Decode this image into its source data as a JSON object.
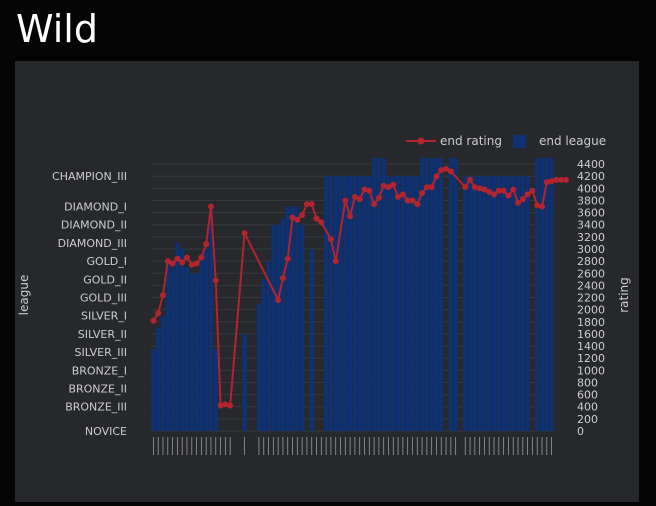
{
  "page": {
    "title": "Wild"
  },
  "colors": {
    "page_bg": "#050505",
    "panel_bg": "#26282c",
    "bar_color": "#0d3172",
    "line_color": "#b3242c",
    "text_color": "#cccccc",
    "grid_color": "#34373c"
  },
  "chart_data": {
    "type": "bar",
    "legend": {
      "position": "top-right",
      "items": [
        {
          "label": "end rating",
          "kind": "line",
          "color": "#b3242c"
        },
        {
          "label": "end league",
          "kind": "bar",
          "color": "#0d3172"
        }
      ]
    },
    "y_left": {
      "label": "league",
      "ticks": [
        "NOVICE",
        "BRONZE_III",
        "BRONZE_II",
        "BRONZE_I",
        "SILVER_III",
        "SILVER_II",
        "SILVER_I",
        "GOLD_III",
        "GOLD_II",
        "GOLD_I",
        "DIAMOND_III",
        "DIAMOND_II",
        "DIAMOND_I",
        "CHAMPION_III"
      ],
      "tick_values": [
        0,
        400,
        700,
        1000,
        1300,
        1600,
        1900,
        2200,
        2500,
        2800,
        3100,
        3400,
        3700,
        4200
      ],
      "range": [
        0,
        4500
      ]
    },
    "y_right": {
      "label": "rating",
      "ticks": [
        0,
        200,
        400,
        600,
        800,
        1000,
        1200,
        1400,
        1600,
        1800,
        2000,
        2200,
        2400,
        2600,
        2800,
        3000,
        3200,
        3400,
        3600,
        3800,
        4000,
        4200,
        4400
      ],
      "range": [
        0,
        4500
      ]
    },
    "grid": true,
    "series": [
      {
        "name": "end league",
        "type": "bar",
        "values": [
          1350,
          1700,
          1900,
          2800,
          2700,
          3100,
          3000,
          2700,
          2600,
          2600,
          2900,
          3000,
          3700,
          1350,
          0,
          0,
          0,
          0,
          0,
          1600,
          0,
          0,
          2100,
          2500,
          2800,
          3400,
          3400,
          3500,
          3700,
          3700,
          3700,
          3400,
          0,
          3000,
          0,
          0,
          4200,
          4200,
          4200,
          4200,
          4200,
          4200,
          4200,
          4200,
          4200,
          4200,
          4500,
          4500,
          4500,
          4200,
          4200,
          4200,
          4200,
          4200,
          4200,
          4200,
          4500,
          4500,
          4500,
          4500,
          4500,
          0,
          4500,
          4500,
          0,
          4200,
          4200,
          4200,
          4200,
          4200,
          4200,
          4200,
          4200,
          4200,
          4200,
          4200,
          4200,
          4200,
          4200,
          0,
          4500,
          4500,
          4500,
          4500
        ]
      },
      {
        "name": "end rating",
        "type": "line",
        "points": [
          [
            0,
            1820
          ],
          [
            1,
            1940
          ],
          [
            2,
            2240
          ],
          [
            3,
            2800
          ],
          [
            4,
            2760
          ],
          [
            5,
            2840
          ],
          [
            6,
            2780
          ],
          [
            7,
            2860
          ],
          [
            8,
            2740
          ],
          [
            9,
            2760
          ],
          [
            10,
            2860
          ],
          [
            11,
            3080
          ],
          [
            12,
            3700
          ],
          [
            13,
            2480
          ],
          [
            14,
            420
          ],
          [
            15,
            440
          ],
          [
            16,
            420
          ],
          [
            19,
            3260
          ],
          [
            26,
            2160
          ],
          [
            27,
            2520
          ],
          [
            28,
            2840
          ],
          [
            29,
            3520
          ],
          [
            30,
            3480
          ],
          [
            31,
            3560
          ],
          [
            32,
            3740
          ],
          [
            33,
            3740
          ],
          [
            34,
            3500
          ],
          [
            35,
            3440
          ],
          [
            37,
            3160
          ],
          [
            38,
            2800
          ],
          [
            40,
            3800
          ],
          [
            41,
            3540
          ],
          [
            42,
            3860
          ],
          [
            43,
            3820
          ],
          [
            44,
            3980
          ],
          [
            45,
            3960
          ],
          [
            46,
            3740
          ],
          [
            47,
            3840
          ],
          [
            48,
            4040
          ],
          [
            49,
            4020
          ],
          [
            50,
            4060
          ],
          [
            51,
            3860
          ],
          [
            52,
            3900
          ],
          [
            53,
            3800
          ],
          [
            54,
            3800
          ],
          [
            55,
            3740
          ],
          [
            56,
            3920
          ],
          [
            57,
            4020
          ],
          [
            58,
            4020
          ],
          [
            59,
            4200
          ],
          [
            60,
            4300
          ],
          [
            61,
            4320
          ],
          [
            62,
            4280
          ],
          [
            65,
            4020
          ],
          [
            66,
            4140
          ],
          [
            67,
            4020
          ],
          [
            68,
            4000
          ],
          [
            69,
            3980
          ],
          [
            70,
            3940
          ],
          [
            71,
            3900
          ],
          [
            72,
            3960
          ],
          [
            73,
            3960
          ],
          [
            74,
            3880
          ],
          [
            75,
            3980
          ],
          [
            76,
            3760
          ],
          [
            77,
            3820
          ],
          [
            78,
            3900
          ],
          [
            79,
            3960
          ],
          [
            80,
            3720
          ],
          [
            81,
            3700
          ],
          [
            82,
            4100
          ],
          [
            83,
            4120
          ],
          [
            84,
            4140
          ],
          [
            85,
            4140
          ],
          [
            86,
            4140
          ]
        ]
      }
    ]
  }
}
